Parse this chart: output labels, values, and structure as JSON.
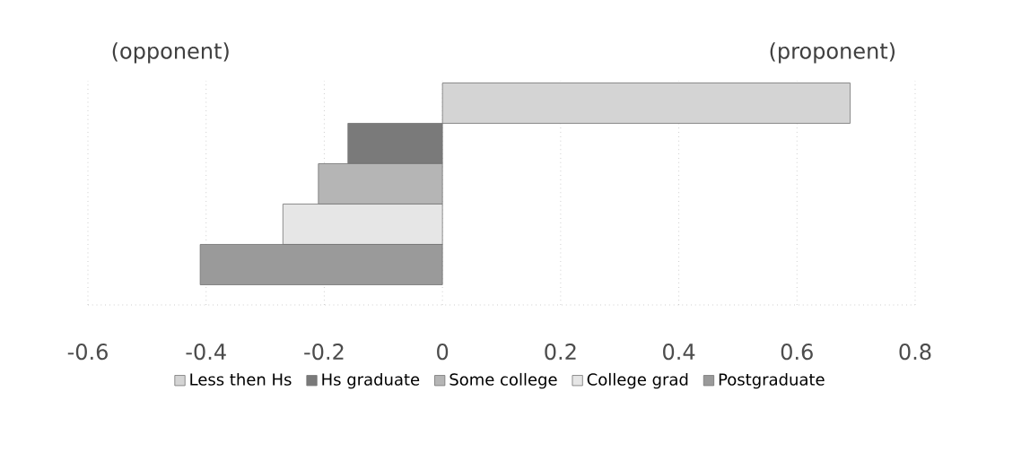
{
  "chart_data": {
    "type": "bar",
    "orientation": "horizontal",
    "categories": [
      null
    ],
    "series": [
      {
        "name": "Less then Hs",
        "color": "#d4d4d4",
        "values": [
          0.69
        ]
      },
      {
        "name": "Hs graduate",
        "color": "#7a7a7a",
        "values": [
          -0.16
        ]
      },
      {
        "name": "Some college",
        "color": "#b5b5b5",
        "values": [
          -0.21
        ]
      },
      {
        "name": "College grad",
        "color": "#e6e6e6",
        "values": [
          -0.27
        ]
      },
      {
        "name": "Postgraduate",
        "color": "#9a9a9a",
        "values": [
          -0.41
        ]
      }
    ],
    "xlim": [
      -0.6,
      0.8
    ],
    "xticks": [
      -0.6,
      -0.4,
      -0.2,
      0,
      0.2,
      0.4,
      0.6,
      0.8
    ],
    "grid": "x",
    "legend": "bottom",
    "annotations": [
      "(opponent)",
      "(proponent)"
    ]
  }
}
